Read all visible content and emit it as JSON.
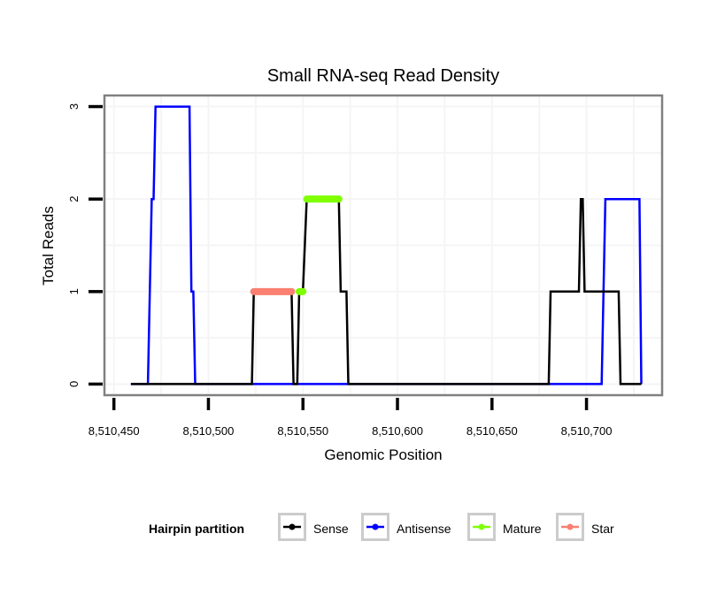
{
  "chart_data": {
    "type": "line",
    "title": "Small RNA-seq Read Density",
    "xlabel": "Genomic Position",
    "ylabel": "Total Reads",
    "xlim": [
      8510445,
      8510740
    ],
    "ylim": [
      -0.12,
      3.12
    ],
    "x_ticks": [
      8510450,
      8510500,
      8510550,
      8510600,
      8510650,
      8510700
    ],
    "x_tick_labels": [
      "8,510,450",
      "8,510,500",
      "8,510,550",
      "8,510,600",
      "8,510,650",
      "8,510,700"
    ],
    "y_ticks": [
      0,
      1,
      2,
      3
    ],
    "y_tick_labels": [
      "0",
      "1",
      "2",
      "3"
    ],
    "grid": true,
    "legend": {
      "title": "Hairpin partition",
      "position": "bottom",
      "entries": [
        {
          "label": "Sense",
          "color": "#000000"
        },
        {
          "label": "Antisense",
          "color": "#0000ff"
        },
        {
          "label": "Mature",
          "color": "#7fff00"
        },
        {
          "label": "Star",
          "color": "#fa8072"
        }
      ]
    },
    "series": [
      {
        "name": "Antisense",
        "color": "#0000ff",
        "x": [
          8510459,
          8510468,
          8510470,
          8510471,
          8510472,
          8510490,
          8510491,
          8510492,
          8510493,
          8510708,
          8510710,
          8510728,
          8510729
        ],
        "y": [
          0,
          0,
          2,
          2,
          3,
          3,
          1,
          1,
          0,
          0,
          2,
          2,
          0
        ]
      },
      {
        "name": "Sense",
        "color": "#000000",
        "x": [
          8510459,
          8510523,
          8510524,
          8510544,
          8510545,
          8510547,
          8510548,
          8510550,
          8510552,
          8510569,
          8510570,
          8510573,
          8510574,
          8510680,
          8510681,
          8510696,
          8510697,
          8510698,
          8510699,
          8510717,
          8510718,
          8510729
        ],
        "y": [
          0,
          0,
          1,
          1,
          0,
          0,
          1,
          1,
          2,
          2,
          1,
          1,
          0,
          0,
          1,
          1,
          2,
          2,
          1,
          1,
          0,
          0
        ]
      }
    ],
    "segments": [
      {
        "name": "Star",
        "color": "#fa8072",
        "x_start": 8510524,
        "x_end": 8510544,
        "y": 1
      },
      {
        "name": "Mature",
        "color": "#7fff00",
        "x_start": 8510548,
        "x_end": 8510550,
        "y": 1
      },
      {
        "name": "Mature",
        "color": "#7fff00",
        "x_start": 8510552,
        "x_end": 8510569,
        "y": 2
      }
    ]
  }
}
